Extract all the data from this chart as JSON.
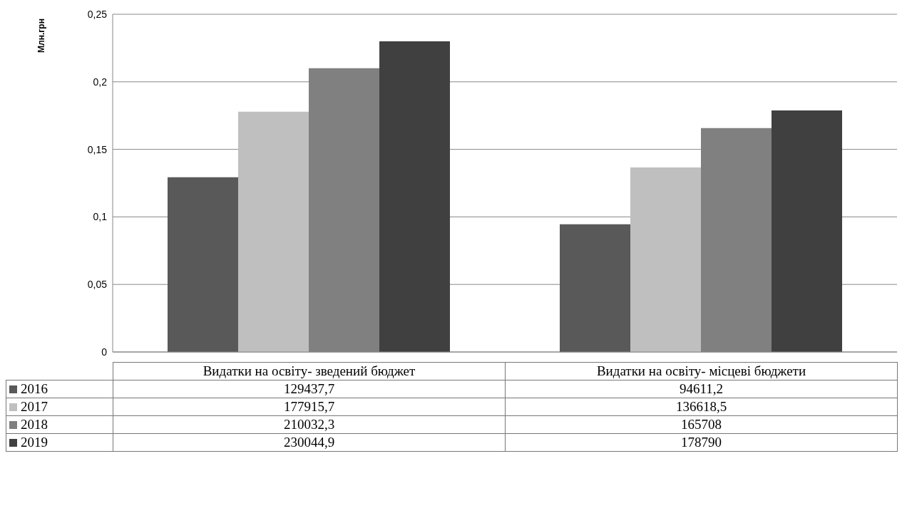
{
  "chart_data": {
    "type": "bar",
    "ylabel": "Млн.грн",
    "categories": [
      "Видатки на освіту- зведений бюджет",
      "Видатки на освіту- місцеві бюджети"
    ],
    "series": [
      {
        "name": "2016",
        "color": "#595959",
        "values": [
          0.1294,
          0.0946
        ]
      },
      {
        "name": "2017",
        "color": "#bfbfbf",
        "values": [
          0.1779,
          0.1366
        ]
      },
      {
        "name": "2018",
        "color": "#808080",
        "values": [
          0.21,
          0.1657
        ]
      },
      {
        "name": "2019",
        "color": "#404040",
        "values": [
          0.23,
          0.1788
        ]
      }
    ],
    "annotations": [
      "129437,7",
      "94611,2",
      "177915,7",
      "136618,5",
      "210032,3",
      "165708",
      "230044,9",
      "178790"
    ],
    "ylim": [
      0,
      0.25
    ],
    "yticks": [
      0,
      {
        "value": 0.05,
        "label": "0,05"
      },
      {
        "value": 0.1,
        "label": "0,1"
      },
      {
        "value": 0.15,
        "label": "0,15"
      },
      {
        "value": 0.2,
        "label": "0,2"
      },
      {
        "value": 0.25,
        "label": "0,25"
      }
    ],
    "grid": "y",
    "legend": "bottom"
  }
}
